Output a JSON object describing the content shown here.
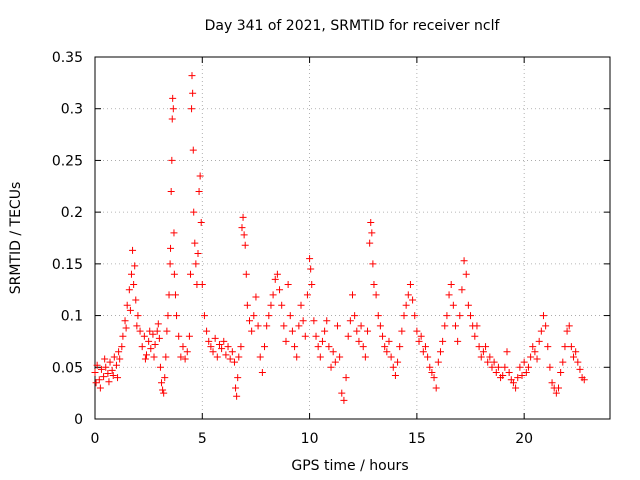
{
  "chart_data": {
    "type": "scatter",
    "title": "Day 341 of 2021, SRMTID for receiver nclf",
    "xlabel": "GPS time / hours",
    "ylabel": "SRMTID / TECUs",
    "xlim": [
      0,
      24
    ],
    "ylim": [
      0,
      0.35
    ],
    "xticks": [
      0,
      5,
      10,
      15,
      20
    ],
    "xtick_labels": [
      "0",
      "5",
      "10",
      "15",
      "20"
    ],
    "yticks": [
      0,
      0.05,
      0.1,
      0.15,
      0.2,
      0.25,
      0.3,
      0.35
    ],
    "ytick_labels": [
      "0",
      "0.05",
      "0.1",
      "0.15",
      "0.2",
      "0.25",
      "0.3",
      "0.35"
    ],
    "grid": true,
    "marker": "+",
    "color": "#ff0000",
    "series": [
      {
        "name": "SRMTID",
        "points": [
          [
            0.0,
            0.045
          ],
          [
            0.1,
            0.052
          ],
          [
            0.2,
            0.038
          ],
          [
            0.3,
            0.048
          ],
          [
            0.4,
            0.041
          ],
          [
            0.5,
            0.05
          ],
          [
            0.6,
            0.044
          ],
          [
            0.7,
            0.055
          ],
          [
            0.8,
            0.047
          ],
          [
            0.9,
            0.06
          ],
          [
            1.0,
            0.052
          ],
          [
            1.1,
            0.065
          ],
          [
            0.05,
            0.035
          ],
          [
            0.25,
            0.03
          ],
          [
            0.45,
            0.058
          ],
          [
            0.65,
            0.036
          ],
          [
            0.85,
            0.042
          ],
          [
            1.05,
            0.04
          ],
          [
            1.15,
            0.058
          ],
          [
            1.25,
            0.07
          ],
          [
            1.3,
            0.08
          ],
          [
            1.4,
            0.095
          ],
          [
            1.5,
            0.11
          ],
          [
            1.6,
            0.125
          ],
          [
            1.7,
            0.14
          ],
          [
            1.75,
            0.163
          ],
          [
            1.8,
            0.13
          ],
          [
            1.9,
            0.115
          ],
          [
            2.0,
            0.1
          ],
          [
            2.1,
            0.085
          ],
          [
            1.45,
            0.088
          ],
          [
            1.65,
            0.105
          ],
          [
            1.85,
            0.148
          ],
          [
            1.95,
            0.09
          ],
          [
            2.2,
            0.07
          ],
          [
            2.3,
            0.08
          ],
          [
            2.4,
            0.062
          ],
          [
            2.5,
            0.075
          ],
          [
            2.6,
            0.068
          ],
          [
            2.7,
            0.082
          ],
          [
            2.8,
            0.072
          ],
          [
            2.9,
            0.085
          ],
          [
            3.0,
            0.078
          ],
          [
            2.35,
            0.058
          ],
          [
            2.55,
            0.085
          ],
          [
            2.75,
            0.06
          ],
          [
            2.95,
            0.092
          ],
          [
            3.05,
            0.05
          ],
          [
            3.1,
            0.035
          ],
          [
            3.15,
            0.028
          ],
          [
            3.2,
            0.025
          ],
          [
            3.25,
            0.04
          ],
          [
            3.3,
            0.06
          ],
          [
            3.35,
            0.085
          ],
          [
            3.4,
            0.1
          ],
          [
            3.45,
            0.12
          ],
          [
            3.5,
            0.15
          ],
          [
            3.55,
            0.22
          ],
          [
            3.6,
            0.29
          ],
          [
            3.62,
            0.31
          ],
          [
            3.65,
            0.3
          ],
          [
            3.58,
            0.25
          ],
          [
            3.52,
            0.165
          ],
          [
            3.68,
            0.18
          ],
          [
            3.7,
            0.14
          ],
          [
            3.75,
            0.12
          ],
          [
            3.8,
            0.1
          ],
          [
            3.9,
            0.08
          ],
          [
            4.0,
            0.06
          ],
          [
            4.1,
            0.07
          ],
          [
            4.2,
            0.058
          ],
          [
            4.3,
            0.065
          ],
          [
            4.4,
            0.08
          ],
          [
            4.45,
            0.14
          ],
          [
            4.5,
            0.3
          ],
          [
            4.52,
            0.332
          ],
          [
            4.55,
            0.315
          ],
          [
            4.58,
            0.26
          ],
          [
            4.6,
            0.2
          ],
          [
            4.65,
            0.17
          ],
          [
            4.7,
            0.15
          ],
          [
            4.75,
            0.13
          ],
          [
            4.8,
            0.16
          ],
          [
            4.85,
            0.22
          ],
          [
            4.9,
            0.235
          ],
          [
            4.95,
            0.19
          ],
          [
            5.0,
            0.13
          ],
          [
            5.1,
            0.1
          ],
          [
            5.2,
            0.085
          ],
          [
            5.3,
            0.075
          ],
          [
            5.4,
            0.07
          ],
          [
            5.5,
            0.065
          ],
          [
            5.6,
            0.078
          ],
          [
            5.7,
            0.06
          ],
          [
            5.8,
            0.072
          ],
          [
            5.9,
            0.068
          ],
          [
            6.0,
            0.075
          ],
          [
            6.1,
            0.062
          ],
          [
            6.2,
            0.07
          ],
          [
            6.3,
            0.058
          ],
          [
            6.4,
            0.065
          ],
          [
            6.5,
            0.055
          ],
          [
            6.55,
            0.03
          ],
          [
            6.6,
            0.022
          ],
          [
            6.65,
            0.04
          ],
          [
            6.7,
            0.06
          ],
          [
            6.8,
            0.07
          ],
          [
            6.85,
            0.185
          ],
          [
            6.9,
            0.195
          ],
          [
            6.95,
            0.178
          ],
          [
            7.0,
            0.168
          ],
          [
            7.05,
            0.14
          ],
          [
            7.1,
            0.11
          ],
          [
            7.2,
            0.095
          ],
          [
            7.3,
            0.085
          ],
          [
            7.4,
            0.1
          ],
          [
            7.5,
            0.118
          ],
          [
            7.6,
            0.09
          ],
          [
            7.7,
            0.06
          ],
          [
            7.8,
            0.045
          ],
          [
            7.9,
            0.07
          ],
          [
            8.0,
            0.09
          ],
          [
            8.1,
            0.1
          ],
          [
            8.2,
            0.11
          ],
          [
            8.3,
            0.12
          ],
          [
            8.4,
            0.135
          ],
          [
            8.5,
            0.14
          ],
          [
            8.6,
            0.125
          ],
          [
            8.7,
            0.11
          ],
          [
            8.8,
            0.09
          ],
          [
            8.9,
            0.075
          ],
          [
            9.0,
            0.13
          ],
          [
            9.1,
            0.1
          ],
          [
            9.2,
            0.085
          ],
          [
            9.3,
            0.07
          ],
          [
            9.4,
            0.06
          ],
          [
            9.5,
            0.09
          ],
          [
            9.6,
            0.11
          ],
          [
            9.7,
            0.095
          ],
          [
            9.8,
            0.08
          ],
          [
            9.9,
            0.12
          ],
          [
            10.0,
            0.155
          ],
          [
            10.05,
            0.145
          ],
          [
            10.1,
            0.13
          ],
          [
            10.2,
            0.095
          ],
          [
            10.3,
            0.08
          ],
          [
            10.4,
            0.07
          ],
          [
            10.5,
            0.06
          ],
          [
            10.6,
            0.075
          ],
          [
            10.7,
            0.085
          ],
          [
            10.8,
            0.095
          ],
          [
            10.9,
            0.07
          ],
          [
            11.0,
            0.05
          ],
          [
            11.1,
            0.065
          ],
          [
            11.2,
            0.055
          ],
          [
            11.3,
            0.09
          ],
          [
            11.4,
            0.06
          ],
          [
            11.5,
            0.025
          ],
          [
            11.6,
            0.018
          ],
          [
            11.7,
            0.04
          ],
          [
            11.8,
            0.08
          ],
          [
            11.9,
            0.095
          ],
          [
            12.0,
            0.12
          ],
          [
            12.1,
            0.1
          ],
          [
            12.2,
            0.085
          ],
          [
            12.3,
            0.075
          ],
          [
            12.4,
            0.09
          ],
          [
            12.5,
            0.07
          ],
          [
            12.6,
            0.06
          ],
          [
            12.7,
            0.085
          ],
          [
            12.8,
            0.17
          ],
          [
            12.85,
            0.19
          ],
          [
            12.9,
            0.18
          ],
          [
            12.95,
            0.15
          ],
          [
            13.0,
            0.13
          ],
          [
            13.1,
            0.12
          ],
          [
            13.2,
            0.1
          ],
          [
            13.3,
            0.09
          ],
          [
            13.4,
            0.08
          ],
          [
            13.5,
            0.07
          ],
          [
            13.6,
            0.065
          ],
          [
            13.7,
            0.075
          ],
          [
            13.8,
            0.06
          ],
          [
            13.9,
            0.05
          ],
          [
            14.0,
            0.042
          ],
          [
            14.1,
            0.055
          ],
          [
            14.2,
            0.07
          ],
          [
            14.3,
            0.085
          ],
          [
            14.4,
            0.1
          ],
          [
            14.5,
            0.11
          ],
          [
            14.6,
            0.12
          ],
          [
            14.7,
            0.13
          ],
          [
            14.8,
            0.115
          ],
          [
            14.9,
            0.1
          ],
          [
            15.0,
            0.085
          ],
          [
            15.1,
            0.075
          ],
          [
            15.2,
            0.08
          ],
          [
            15.3,
            0.065
          ],
          [
            15.4,
            0.07
          ],
          [
            15.5,
            0.06
          ],
          [
            15.6,
            0.05
          ],
          [
            15.7,
            0.045
          ],
          [
            15.8,
            0.04
          ],
          [
            15.9,
            0.03
          ],
          [
            16.0,
            0.055
          ],
          [
            16.1,
            0.065
          ],
          [
            16.2,
            0.075
          ],
          [
            16.3,
            0.09
          ],
          [
            16.4,
            0.1
          ],
          [
            16.5,
            0.12
          ],
          [
            16.6,
            0.13
          ],
          [
            16.7,
            0.11
          ],
          [
            16.8,
            0.09
          ],
          [
            16.9,
            0.075
          ],
          [
            17.0,
            0.1
          ],
          [
            17.1,
            0.125
          ],
          [
            17.2,
            0.153
          ],
          [
            17.3,
            0.14
          ],
          [
            17.4,
            0.11
          ],
          [
            17.5,
            0.1
          ],
          [
            17.6,
            0.09
          ],
          [
            17.7,
            0.08
          ],
          [
            17.8,
            0.09
          ],
          [
            17.9,
            0.07
          ],
          [
            18.0,
            0.06
          ],
          [
            18.1,
            0.065
          ],
          [
            18.2,
            0.07
          ],
          [
            18.3,
            0.055
          ],
          [
            18.4,
            0.06
          ],
          [
            18.5,
            0.05
          ],
          [
            18.6,
            0.055
          ],
          [
            18.7,
            0.045
          ],
          [
            18.8,
            0.05
          ],
          [
            18.9,
            0.04
          ],
          [
            19.0,
            0.042
          ],
          [
            19.1,
            0.05
          ],
          [
            19.2,
            0.065
          ],
          [
            19.3,
            0.045
          ],
          [
            19.4,
            0.038
          ],
          [
            19.5,
            0.035
          ],
          [
            19.6,
            0.03
          ],
          [
            19.7,
            0.04
          ],
          [
            19.8,
            0.05
          ],
          [
            19.9,
            0.042
          ],
          [
            20.0,
            0.055
          ],
          [
            20.1,
            0.045
          ],
          [
            20.2,
            0.05
          ],
          [
            20.3,
            0.06
          ],
          [
            20.4,
            0.07
          ],
          [
            20.5,
            0.065
          ],
          [
            20.6,
            0.058
          ],
          [
            20.7,
            0.075
          ],
          [
            20.8,
            0.085
          ],
          [
            20.9,
            0.1
          ],
          [
            21.0,
            0.09
          ],
          [
            21.1,
            0.07
          ],
          [
            21.2,
            0.05
          ],
          [
            21.3,
            0.035
          ],
          [
            21.4,
            0.03
          ],
          [
            21.5,
            0.025
          ],
          [
            21.6,
            0.03
          ],
          [
            21.7,
            0.045
          ],
          [
            21.8,
            0.055
          ],
          [
            21.9,
            0.07
          ],
          [
            22.0,
            0.085
          ],
          [
            22.1,
            0.09
          ],
          [
            22.2,
            0.07
          ],
          [
            22.3,
            0.06
          ],
          [
            22.4,
            0.065
          ],
          [
            22.5,
            0.055
          ],
          [
            22.6,
            0.048
          ],
          [
            22.7,
            0.04
          ],
          [
            22.8,
            0.038
          ]
        ]
      }
    ]
  }
}
